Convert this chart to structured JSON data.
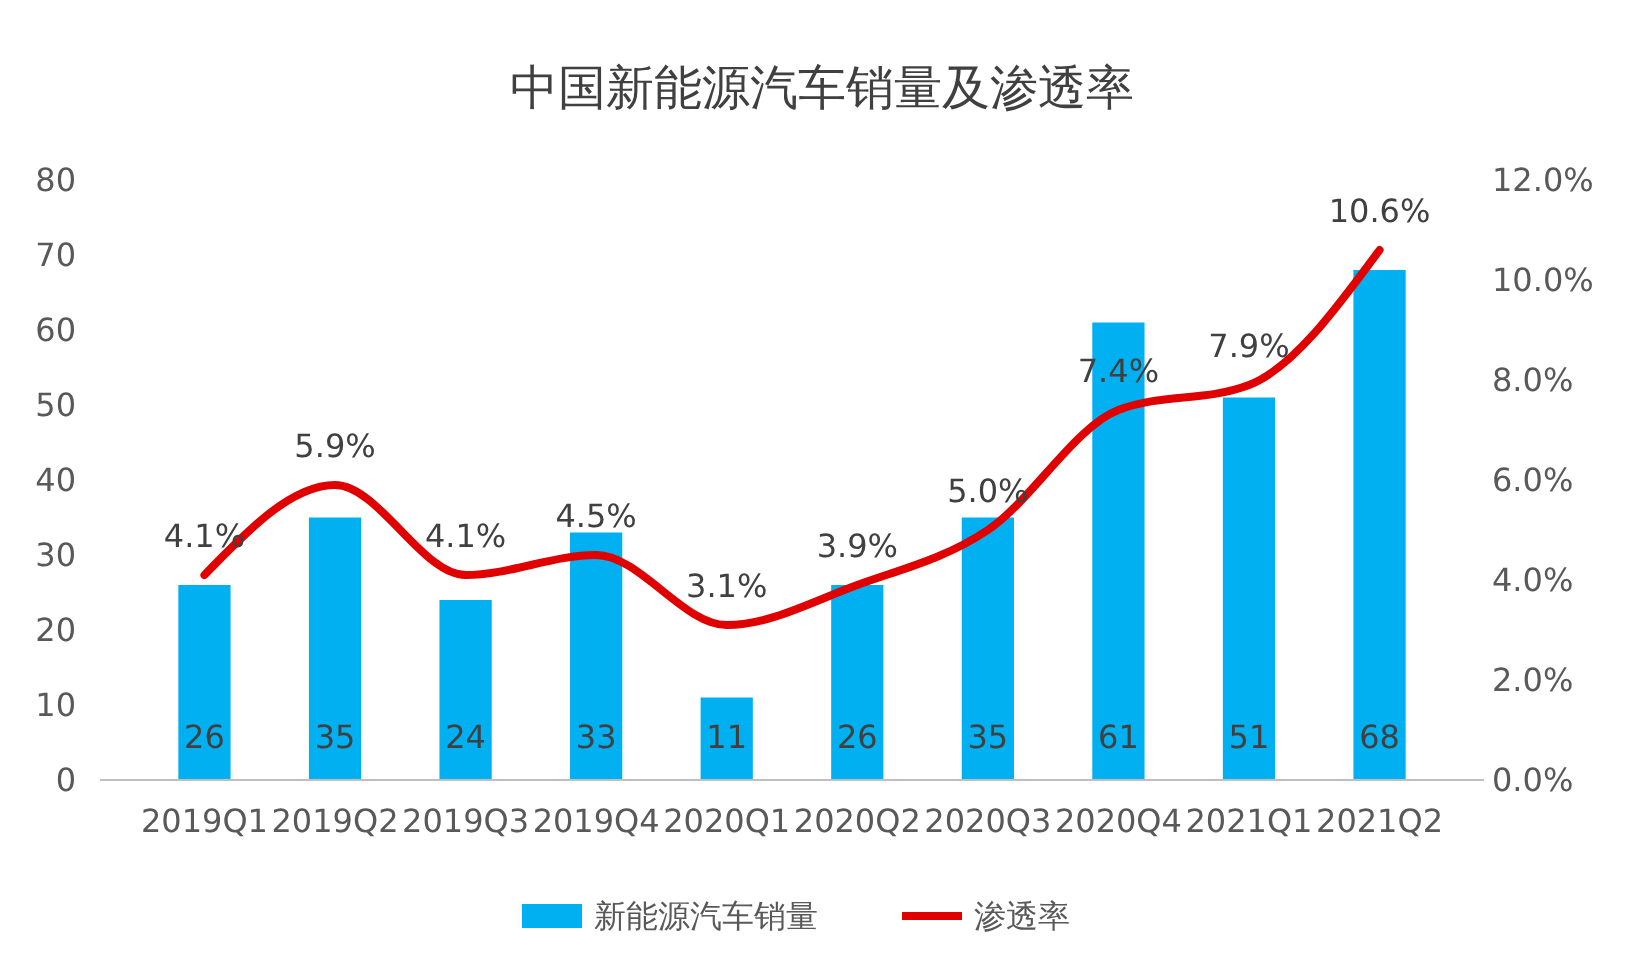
{
  "chart_data": {
    "type": "bar",
    "title": "中国新能源汽车销量及渗透率",
    "categories": [
      "2019Q1",
      "2019Q2",
      "2019Q3",
      "2019Q4",
      "2020Q1",
      "2020Q2",
      "2020Q3",
      "2020Q4",
      "2021Q1",
      "2021Q2"
    ],
    "series": [
      {
        "name": "新能源汽车销量",
        "color": "#00b0f0",
        "values": [
          26,
          35,
          24,
          33,
          11,
          26,
          35,
          61,
          51,
          68
        ],
        "value_labels": [
          "26",
          "35",
          "24",
          "33",
          "11",
          "26",
          "35",
          "61",
          "51",
          "68"
        ]
      },
      {
        "name": "渗透率",
        "type": "line",
        "axis": "y2",
        "color": "#e00000",
        "values": [
          4.1,
          5.9,
          4.1,
          4.5,
          3.1,
          3.9,
          5.0,
          7.4,
          7.9,
          10.6
        ],
        "value_labels": [
          "4.1%",
          "5.9%",
          "4.1%",
          "4.5%",
          "3.1%",
          "3.9%",
          "5.0%",
          "7.4%",
          "7.9%",
          "10.6%"
        ]
      }
    ],
    "ylim": [
      0,
      80
    ],
    "yticks": [
      0,
      10,
      20,
      30,
      40,
      50,
      60,
      70,
      80
    ],
    "y2lim": [
      0,
      12
    ],
    "y2ticks": [
      {
        "value": 0,
        "label": "0.0%"
      },
      {
        "value": 2,
        "label": "2.0%"
      },
      {
        "value": 4,
        "label": "4.0%"
      },
      {
        "value": 6,
        "label": "6.0%"
      },
      {
        "value": 8,
        "label": "8.0%"
      },
      {
        "value": 10,
        "label": "10.0%"
      },
      {
        "value": 12,
        "label": "12.0%"
      }
    ],
    "grid": false,
    "legend": "bottom",
    "marker": "none",
    "line_style": "solid"
  }
}
